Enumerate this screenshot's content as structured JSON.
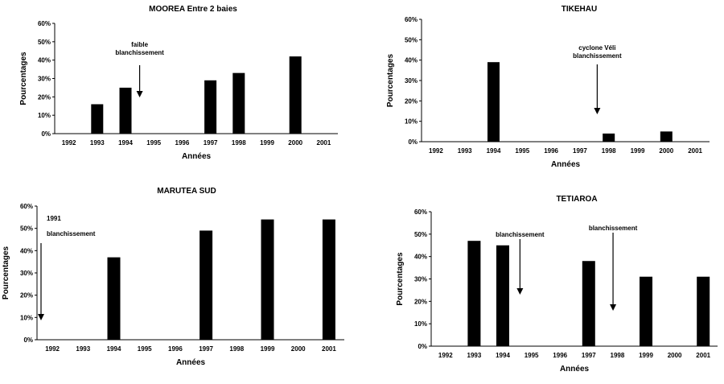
{
  "chart_data": [
    {
      "type": "bar",
      "title": "MOOREA Entre 2 baies",
      "xlabel": "Années",
      "ylabel": "Pourcentages",
      "ylim": [
        0,
        60
      ],
      "y_ticks": [
        "0%",
        "10%",
        "20%",
        "30%",
        "40%",
        "50%",
        "60%"
      ],
      "categories": [
        "1992",
        "1993",
        "1994",
        "1995",
        "1996",
        "1997",
        "1998",
        "1999",
        "2000",
        "2001"
      ],
      "values": [
        0,
        16,
        25,
        0,
        0,
        29,
        33,
        0,
        42,
        0
      ],
      "annotations": [
        {
          "lines": [
            "faible",
            "blanchissement"
          ],
          "year": 1994.5
        }
      ]
    },
    {
      "type": "bar",
      "title": "TIKEHAU",
      "xlabel": "Années",
      "ylabel": "Pourcentages",
      "ylim": [
        0,
        60
      ],
      "y_ticks": [
        "0%",
        "10%",
        "20%",
        "30%",
        "40%",
        "50%",
        "60%"
      ],
      "categories": [
        "1992",
        "1993",
        "1994",
        "1995",
        "1996",
        "1997",
        "1998",
        "1999",
        "2000",
        "2001"
      ],
      "values": [
        0,
        0,
        39,
        0,
        0,
        0,
        4,
        0,
        5,
        0
      ],
      "annotations": [
        {
          "lines": [
            "cyclone Véli",
            "blanchissement"
          ],
          "year": 1997.6
        }
      ]
    },
    {
      "type": "bar",
      "title": "MARUTEA SUD",
      "xlabel": "Années",
      "ylabel": "Pourcentages",
      "ylim": [
        0,
        60
      ],
      "y_ticks": [
        "0%",
        "10%",
        "20%",
        "30%",
        "40%",
        "50%",
        "60%"
      ],
      "categories": [
        "1992",
        "1993",
        "1994",
        "1995",
        "1996",
        "1997",
        "1998",
        "1999",
        "2000",
        "2001"
      ],
      "values": [
        0,
        0,
        37,
        0,
        0,
        49,
        0,
        54,
        0,
        54
      ],
      "annotations": [
        {
          "lines": [
            "1991",
            "blanchissement"
          ],
          "year": 1991.5
        }
      ]
    },
    {
      "type": "bar",
      "title": "TETIAROA",
      "xlabel": "Années",
      "ylabel": "Pourcentages",
      "ylim": [
        0,
        60
      ],
      "y_ticks": [
        "0%",
        "10%",
        "20%",
        "30%",
        "40%",
        "50%",
        "60%"
      ],
      "categories": [
        "1992",
        "1993",
        "1994",
        "1995",
        "1996",
        "1997",
        "1998",
        "1999",
        "2000",
        "2001"
      ],
      "values": [
        0,
        47,
        45,
        0,
        0,
        38,
        0,
        31,
        0,
        31
      ],
      "annotations": [
        {
          "lines": [
            "blanchissement"
          ],
          "year": 1994.6
        },
        {
          "lines": [
            "blanchissement"
          ],
          "year": 1997.85
        }
      ]
    }
  ]
}
